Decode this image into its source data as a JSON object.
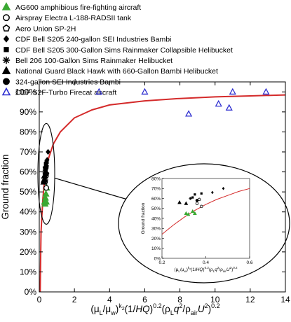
{
  "chart_data": {
    "type": "scatter",
    "xlabel": "(μL/μw)k2(1/HQ)0.2(ρLq2/ρairU2)0.2",
    "ylabel": "Ground fraction",
    "xlim": [
      0,
      14
    ],
    "ylim": [
      0,
      1.05
    ],
    "x_ticks": [
      "0",
      "2",
      "4",
      "6",
      "8",
      "10",
      "12",
      "14"
    ],
    "y_ticks": [
      "0%",
      "10%",
      "20%",
      "30%",
      "40%",
      "50%",
      "60%",
      "70%",
      "80%",
      "90%",
      "100%"
    ],
    "grid": false,
    "legend_position": "top-left",
    "series": [
      {
        "name": "AG600 amphibious fire-fighting aircraft",
        "marker": "triangle-filled",
        "color": "#3aa832",
        "points": [
          [
            0.3,
            0.45
          ],
          [
            0.35,
            0.47
          ],
          [
            0.4,
            0.45
          ],
          [
            0.38,
            0.49
          ],
          [
            0.42,
            0.52
          ],
          [
            0.33,
            0.44
          ]
        ]
      },
      {
        "name": "Airspray Electra L-188-RADSII tank",
        "marker": "circle-open",
        "color": "#000000",
        "points": [
          [
            0.33,
            0.55
          ],
          [
            0.38,
            0.58
          ],
          [
            0.4,
            0.52
          ]
        ]
      },
      {
        "name": "Aero Union SP-2H",
        "marker": "pentagon-open",
        "color": "#000000",
        "points": [
          [
            0.4,
            0.59
          ],
          [
            0.36,
            0.62
          ]
        ]
      },
      {
        "name": "CDF Bell S205 240-gallon SEI Industries Bambi",
        "marker": "diamond-filled",
        "color": "#000000",
        "points": [
          [
            0.5,
            0.7
          ],
          [
            0.45,
            0.66
          ],
          [
            0.42,
            0.63
          ]
        ]
      },
      {
        "name": "CDF Bell S205 300-Gallon Sims Rainmaker Collapsible Helibucket",
        "marker": "square-filled",
        "color": "#000000",
        "points": [
          [
            0.38,
            0.64
          ],
          [
            0.42,
            0.65
          ],
          [
            0.36,
            0.6
          ]
        ]
      },
      {
        "name": "Bell 206 100-Gallon Sims Rainmaker Helibucket",
        "marker": "asterisk",
        "color": "#000000",
        "points": [
          [
            0.3,
            0.57
          ],
          [
            0.32,
            0.6
          ],
          [
            0.34,
            0.56
          ]
        ]
      },
      {
        "name": "National Guard Black Hawk with 660-Gallon Bambi Helibucket",
        "marker": "triangle-filled",
        "color": "#000000",
        "points": [
          [
            0.28,
            0.56
          ],
          [
            0.3,
            0.58
          ],
          [
            0.26,
            0.55
          ]
        ]
      },
      {
        "name": "324-gallon SEI Industries Bambi",
        "marker": "circle-filled",
        "color": "#000000",
        "points": [
          [
            0.35,
            0.59
          ],
          [
            0.37,
            0.62
          ]
        ]
      },
      {
        "name": "CDF S2F-Turbo Firecat aircraft",
        "marker": "triangle-open",
        "color": "#2c2ccf",
        "points": [
          [
            3.4,
            1.0
          ],
          [
            6.0,
            1.0
          ],
          [
            8.5,
            0.89
          ],
          [
            10.2,
            0.94
          ],
          [
            10.8,
            0.92
          ],
          [
            11.0,
            1.0
          ],
          [
            12.9,
            1.0
          ]
        ]
      }
    ],
    "fit_curve": {
      "color": "#d42a2a",
      "points": [
        [
          0.05,
          0.0
        ],
        [
          0.1,
          0.3
        ],
        [
          0.2,
          0.46
        ],
        [
          0.3,
          0.56
        ],
        [
          0.5,
          0.66
        ],
        [
          0.8,
          0.74
        ],
        [
          1.2,
          0.8
        ],
        [
          2,
          0.87
        ],
        [
          3,
          0.91
        ],
        [
          4,
          0.935
        ],
        [
          6,
          0.955
        ],
        [
          8,
          0.967
        ],
        [
          10,
          0.975
        ],
        [
          12,
          0.98
        ],
        [
          14,
          0.985
        ]
      ]
    },
    "inset": {
      "xlim": [
        0.2,
        0.6
      ],
      "ylim": [
        0,
        0.8
      ],
      "x_ticks": [
        "0.2",
        "0.4",
        "0.6"
      ],
      "y_ticks": [
        "0%",
        "10%",
        "20%",
        "30%",
        "40%",
        "50%",
        "60%",
        "70%",
        "80%"
      ],
      "ylabel": "Ground fraction",
      "xlabel": "(μL/μw)k2(1/HQ)0.2(ρLq2/ρairU2)0.2",
      "fit_curve": [
        [
          0.2,
          0.24
        ],
        [
          0.25,
          0.33
        ],
        [
          0.3,
          0.41
        ],
        [
          0.35,
          0.48
        ],
        [
          0.4,
          0.54
        ],
        [
          0.45,
          0.59
        ],
        [
          0.5,
          0.63
        ],
        [
          0.55,
          0.67
        ],
        [
          0.6,
          0.7
        ]
      ],
      "points": [
        {
          "marker": "triangle-filled",
          "color": "#3aa832",
          "x": 0.31,
          "y": 0.45
        },
        {
          "marker": "triangle-filled",
          "color": "#3aa832",
          "x": 0.32,
          "y": 0.44
        },
        {
          "marker": "triangle-filled",
          "color": "#3aa832",
          "x": 0.34,
          "y": 0.47
        },
        {
          "marker": "triangle-filled",
          "color": "#3aa832",
          "x": 0.35,
          "y": 0.45
        },
        {
          "marker": "circle-open",
          "color": "#000000",
          "x": 0.36,
          "y": 0.55
        },
        {
          "marker": "circle-open",
          "color": "#000000",
          "x": 0.38,
          "y": 0.52
        },
        {
          "marker": "pentagon-open",
          "color": "#000000",
          "x": 0.37,
          "y": 0.59
        },
        {
          "marker": "diamond-filled",
          "color": "#000000",
          "x": 0.48,
          "y": 0.7
        },
        {
          "marker": "diamond-filled",
          "color": "#000000",
          "x": 0.43,
          "y": 0.66
        },
        {
          "marker": "square-filled",
          "color": "#000000",
          "x": 0.35,
          "y": 0.64
        },
        {
          "marker": "square-filled",
          "color": "#000000",
          "x": 0.38,
          "y": 0.65
        },
        {
          "marker": "square-filled",
          "color": "#000000",
          "x": 0.34,
          "y": 0.61
        },
        {
          "marker": "asterisk",
          "color": "#000000",
          "x": 0.33,
          "y": 0.6
        },
        {
          "marker": "triangle-filled",
          "color": "#000000",
          "x": 0.28,
          "y": 0.56
        },
        {
          "marker": "triangle-filled",
          "color": "#000000",
          "x": 0.31,
          "y": 0.55
        },
        {
          "marker": "circle-filled",
          "color": "#000000",
          "x": 0.36,
          "y": 0.58
        }
      ]
    }
  }
}
